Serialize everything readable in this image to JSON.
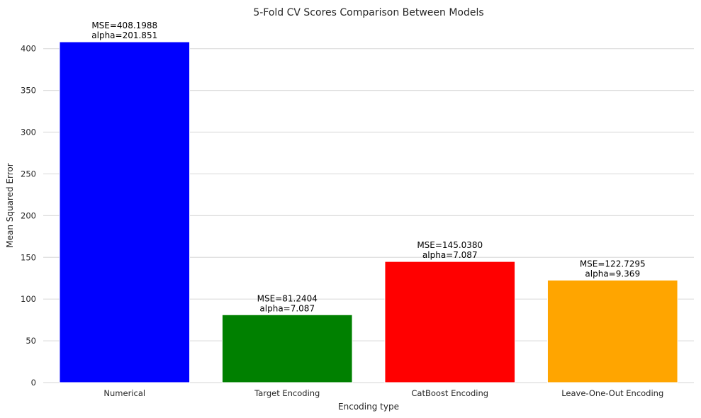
{
  "chart_data": {
    "type": "bar",
    "title": "5-Fold CV Scores Comparison Between Models",
    "xlabel": "Encoding type",
    "ylabel": "Mean Squared Error",
    "categories": [
      "Numerical",
      "Target Encoding",
      "CatBoost Encoding",
      "Leave-One-Out Encoding"
    ],
    "values": [
      408.1988,
      81.2404,
      145.038,
      122.7295
    ],
    "alphas": [
      201.851,
      7.087,
      7.087,
      9.369
    ],
    "value_labels": [
      "MSE=408.1988",
      "MSE=81.2404",
      "MSE=145.0380",
      "MSE=122.7295"
    ],
    "alpha_labels": [
      "alpha=201.851",
      "alpha=7.087",
      "alpha=7.087",
      "alpha=9.369"
    ],
    "colors": [
      "#0000ff",
      "#008000",
      "#ff0000",
      "#ffa500"
    ],
    "yticks": [
      0,
      50,
      100,
      150,
      200,
      250,
      300,
      350,
      400
    ],
    "ylim": [
      0,
      428.6
    ],
    "grid": "horizontal",
    "legend": "none"
  }
}
